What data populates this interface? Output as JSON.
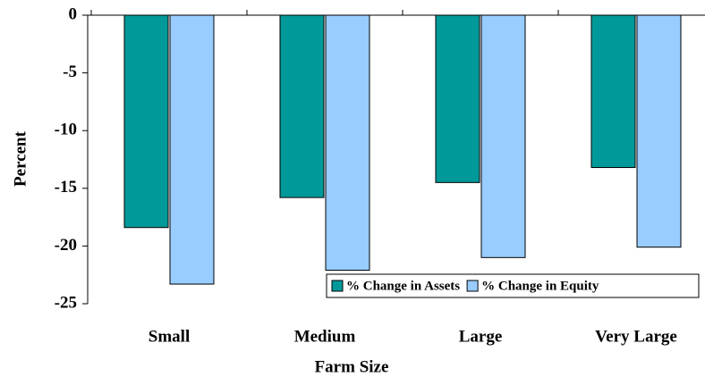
{
  "chart_data": {
    "type": "bar",
    "x_label": "Farm Size",
    "y_label": "Percent",
    "categories": [
      "Small",
      "Medium",
      "Large",
      "Very Large"
    ],
    "series": [
      {
        "name": "% Change in Assets",
        "color": "#009999",
        "values": [
          -18.4,
          -15.8,
          -14.5,
          -13.2
        ]
      },
      {
        "name": "% Change in Equity",
        "color": "#99ccff",
        "values": [
          -23.3,
          -22.1,
          -21.0,
          -20.1
        ]
      }
    ],
    "ylim": [
      -25,
      0
    ],
    "yticks": [
      0,
      -5,
      -10,
      -15,
      -20,
      -25
    ],
    "grid": false,
    "legend": "lower right"
  }
}
